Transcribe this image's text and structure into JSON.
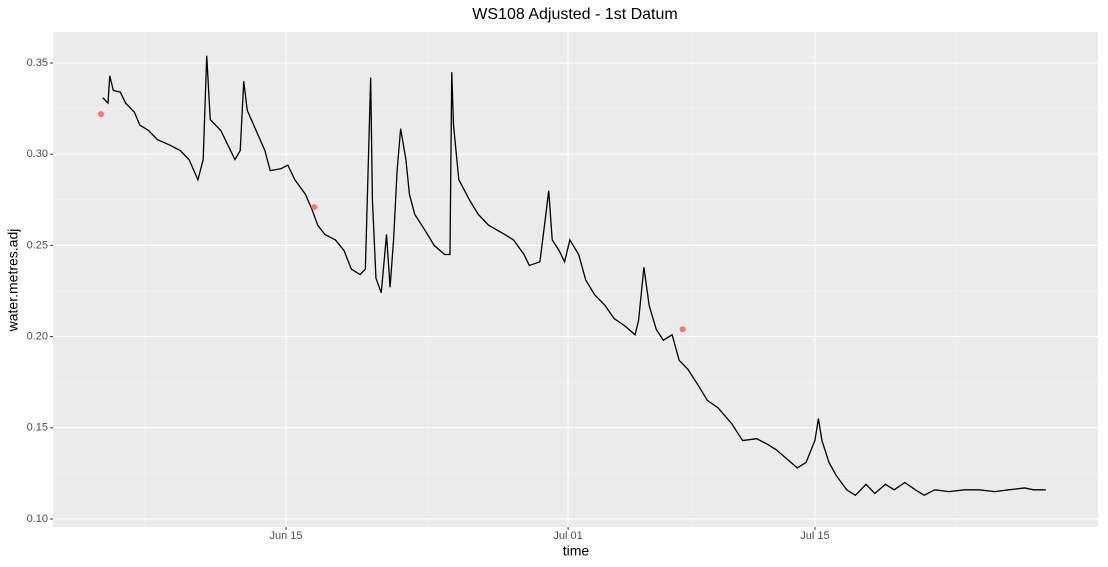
{
  "chart_data": {
    "type": "line",
    "title": "WS108 Adjusted - 1st Datum",
    "x_label": "time",
    "y_label": "water.metres.adj",
    "xlim": [
      0.78,
      60.06
    ],
    "xticks": [
      {
        "value": 14,
        "label": "Jun 15"
      },
      {
        "value": 30,
        "label": "Jul 01"
      },
      {
        "value": 44,
        "label": "Jul 15"
      }
    ],
    "x_minor_ticks": [
      6,
      22,
      37,
      52
    ],
    "ylim": [
      0.0956,
      0.367
    ],
    "yticks": [
      {
        "value": 0.1,
        "label": "0.10"
      },
      0.15,
      {
        "value": 0.2,
        "label": "0.20"
      },
      0.25,
      {
        "value": 0.3,
        "label": "0.30"
      },
      0.35
    ],
    "y_minor_ticks": [
      0.125,
      0.175,
      0.225,
      0.275,
      0.325
    ],
    "grid": true,
    "series": [
      {
        "type": "line",
        "color": "#000000",
        "x": [
          3.6,
          3.9,
          4.0,
          4.2,
          4.6,
          4.9,
          5.4,
          5.7,
          6.2,
          6.7,
          7.4,
          8.0,
          8.5,
          9.0,
          9.3,
          9.5,
          9.7,
          10.0,
          10.3,
          10.7,
          11.1,
          11.4,
          11.6,
          11.8,
          12.3,
          12.8,
          13.1,
          13.7,
          14.1,
          14.5,
          15.1,
          15.5,
          15.8,
          16.2,
          16.8,
          17.3,
          17.7,
          18.2,
          18.5,
          18.8,
          18.9,
          19.1,
          19.4,
          19.7,
          19.9,
          20.1,
          20.3,
          20.5,
          20.8,
          21.0,
          21.3,
          21.9,
          22.4,
          23.0,
          23.3,
          23.4,
          23.5,
          23.8,
          24.4,
          24.9,
          25.5,
          26.4,
          26.9,
          27.5,
          27.8,
          28.4,
          28.7,
          28.9,
          29.1,
          29.5,
          29.8,
          30.1,
          30.6,
          31.0,
          31.5,
          32.1,
          32.6,
          33.2,
          33.8,
          34.0,
          34.3,
          34.6,
          35.0,
          35.4,
          35.9,
          36.3,
          36.8,
          37.4,
          37.9,
          38.5,
          39.3,
          39.9,
          40.7,
          41.3,
          41.8,
          42.4,
          43.0,
          43.5,
          44.0,
          44.2,
          44.4,
          44.8,
          45.2,
          45.8,
          46.3,
          46.9,
          47.4,
          48.0,
          48.5,
          49.1,
          49.7,
          50.2,
          50.8,
          51.6,
          52.5,
          53.3,
          54.2,
          55.0,
          55.9,
          56.4,
          57.1
        ],
        "values": [
          0.331,
          0.328,
          0.343,
          0.335,
          0.334,
          0.328,
          0.323,
          0.316,
          0.313,
          0.308,
          0.305,
          0.302,
          0.297,
          0.286,
          0.297,
          0.354,
          0.319,
          0.316,
          0.313,
          0.305,
          0.297,
          0.302,
          0.34,
          0.324,
          0.313,
          0.302,
          0.291,
          0.292,
          0.294,
          0.286,
          0.278,
          0.269,
          0.261,
          0.256,
          0.253,
          0.247,
          0.237,
          0.234,
          0.237,
          0.342,
          0.275,
          0.232,
          0.224,
          0.256,
          0.227,
          0.253,
          0.291,
          0.314,
          0.297,
          0.278,
          0.267,
          0.258,
          0.25,
          0.245,
          0.245,
          0.345,
          0.316,
          0.286,
          0.275,
          0.267,
          0.261,
          0.256,
          0.253,
          0.245,
          0.239,
          0.241,
          0.264,
          0.28,
          0.253,
          0.247,
          0.241,
          0.253,
          0.245,
          0.231,
          0.223,
          0.217,
          0.21,
          0.206,
          0.201,
          0.209,
          0.238,
          0.217,
          0.204,
          0.198,
          0.201,
          0.187,
          0.182,
          0.173,
          0.165,
          0.161,
          0.152,
          0.143,
          0.144,
          0.141,
          0.138,
          0.133,
          0.128,
          0.131,
          0.143,
          0.155,
          0.143,
          0.131,
          0.124,
          0.116,
          0.113,
          0.119,
          0.114,
          0.119,
          0.116,
          0.12,
          0.116,
          0.113,
          0.116,
          0.115,
          0.116,
          0.116,
          0.115,
          0.116,
          0.117,
          0.116,
          0.116
        ]
      },
      {
        "type": "point",
        "color": "#F8766D",
        "x": [
          3.5,
          15.6,
          36.5
        ],
        "values": [
          0.322,
          0.271,
          0.204
        ]
      }
    ]
  }
}
